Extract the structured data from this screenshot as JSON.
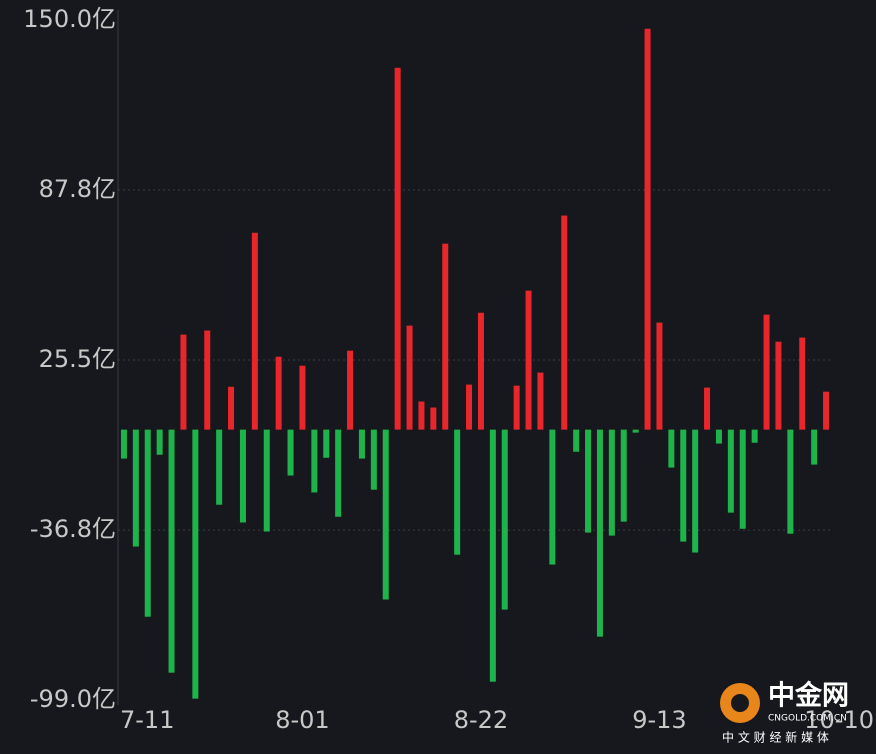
{
  "chart_data": {
    "type": "bar",
    "categories": [
      "7-11",
      null,
      null,
      null,
      null,
      null,
      null,
      null,
      null,
      null,
      null,
      null,
      null,
      null,
      null,
      "8-01",
      null,
      null,
      null,
      null,
      null,
      null,
      null,
      null,
      null,
      null,
      null,
      null,
      null,
      null,
      "8-22",
      null,
      null,
      null,
      null,
      null,
      null,
      null,
      null,
      null,
      null,
      null,
      null,
      null,
      null,
      "9-13",
      null,
      null,
      null,
      null,
      null,
      null,
      null,
      null,
      null,
      null,
      null,
      null,
      null,
      "10-10"
    ],
    "values": [
      -10.6,
      -42.8,
      -68.5,
      -9.2,
      -89,
      34.8,
      -98.5,
      36.3,
      -27.5,
      15.7,
      -34,
      72.1,
      -37.3,
      26.7,
      -16.8,
      23.4,
      -23,
      -10.3,
      -31.9,
      28.9,
      -10.6,
      -22,
      -62.2,
      132.5,
      38.1,
      10.3,
      8.1,
      68.1,
      -45.8,
      16.5,
      42.8,
      -92.3,
      -65.9,
      16.1,
      50.9,
      20.9,
      -49.4,
      78.4,
      -8.1,
      -37.7,
      -75.8,
      -38.8,
      -33.7,
      -1.1,
      146.8,
      39.2,
      -13.9,
      -41,
      -45,
      15.4,
      -5.1,
      -30.4,
      -36.3,
      -4.8,
      42.1,
      32.2,
      -38.1,
      33.7,
      -12.8,
      13.9
    ],
    "positive_color": "#e8262c",
    "negative_color": "#1fb44b",
    "ylim": [
      -99,
      150
    ],
    "yticks": [
      {
        "value": -99,
        "label": "-99.0亿"
      },
      {
        "value": -36.8,
        "label": "-36.8亿"
      },
      {
        "value": 25.5,
        "label": "25.5亿"
      },
      {
        "value": 87.8,
        "label": "87.8亿"
      },
      {
        "value": 150,
        "label": "150.0亿"
      }
    ],
    "grid": true
  },
  "watermark": {
    "name": "中金网",
    "domain": "CNGOLD.COM.CN",
    "slogan": "中 文 财 经 新 媒 体"
  }
}
